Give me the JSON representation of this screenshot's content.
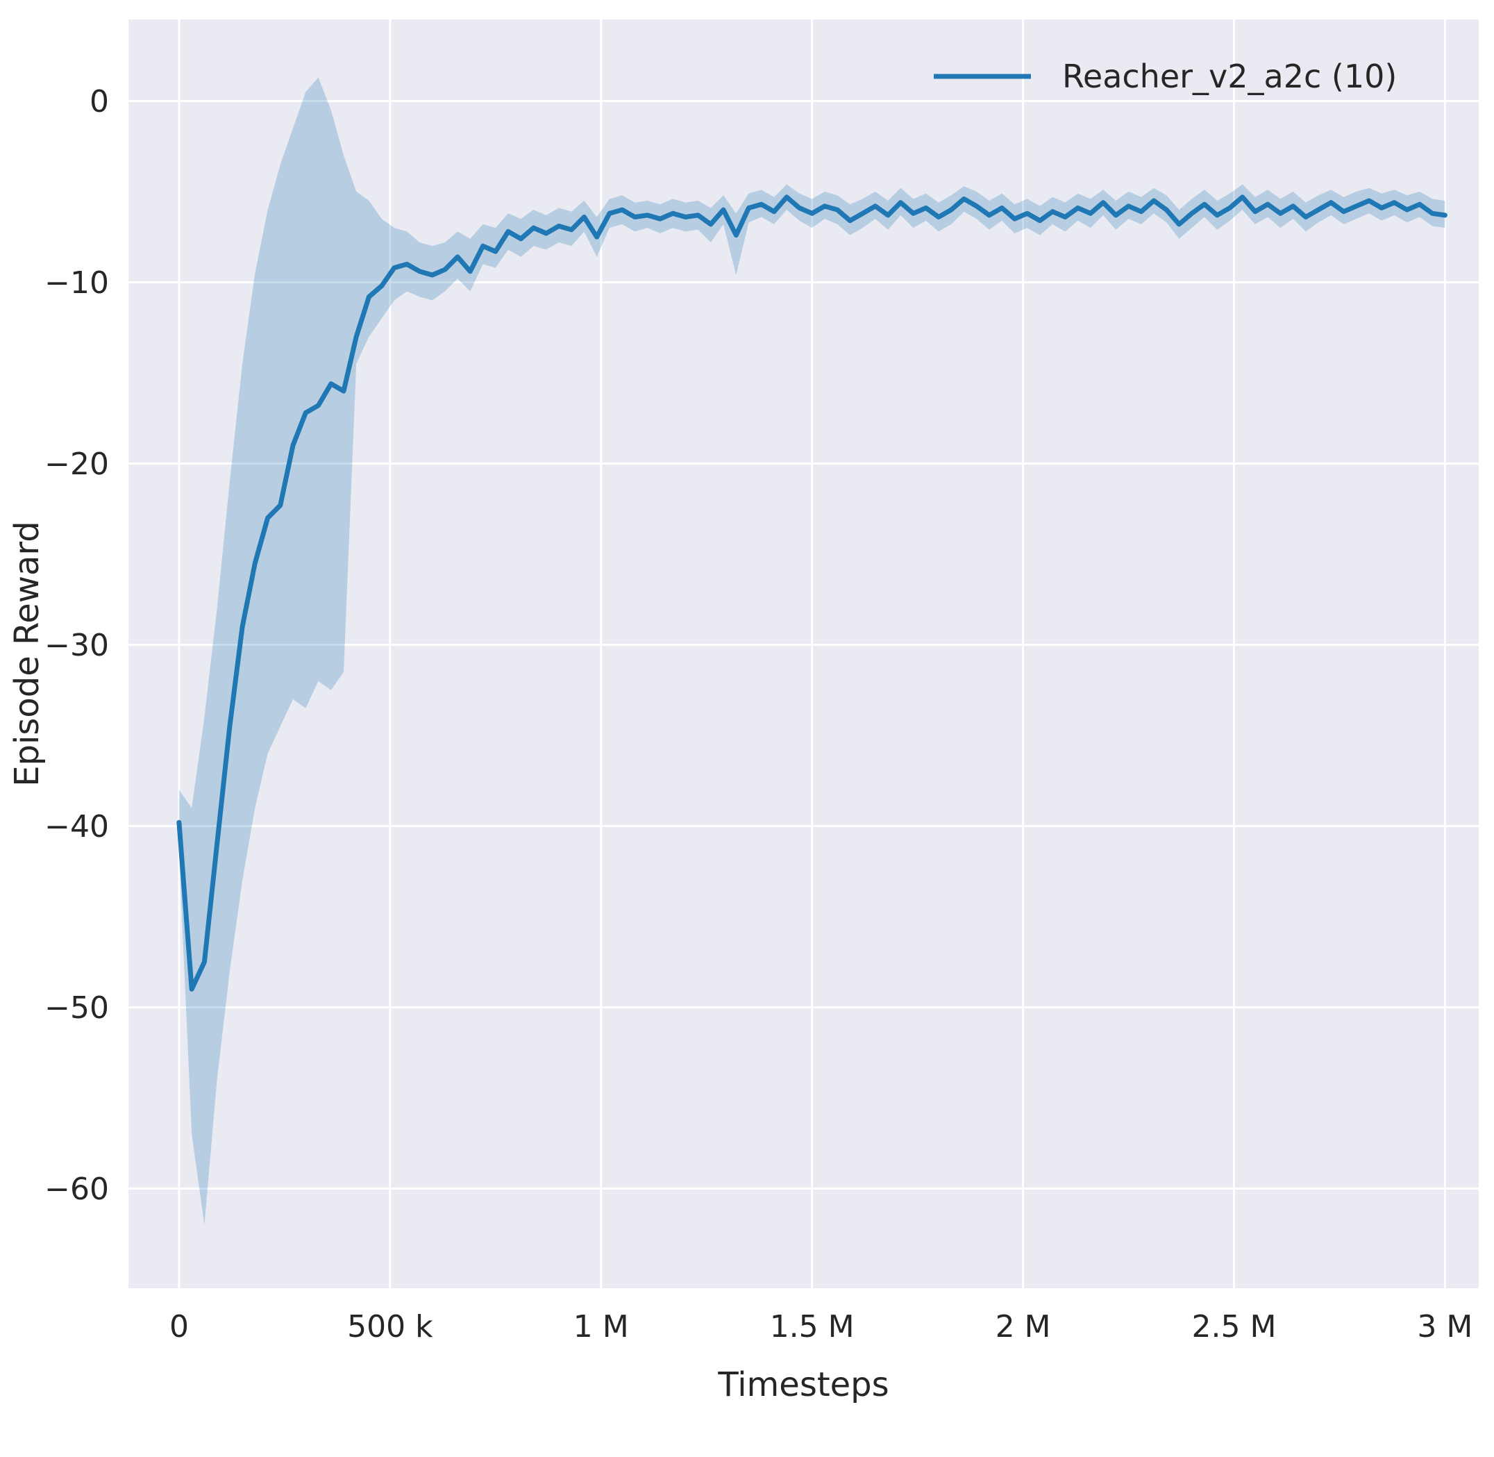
{
  "chart_data": {
    "type": "line",
    "title": "",
    "xlabel": "Timesteps",
    "ylabel": "Episode Reward",
    "legend_position": "upper right",
    "grid": true,
    "plot_bg": "#eaeaf2",
    "grid_color": "#ffffff",
    "text_color": "#262626",
    "xlim": [
      -120000,
      3080000
    ],
    "ylim": [
      -65.5,
      4.5
    ],
    "xticks": [
      {
        "value": 0,
        "label": "0"
      },
      {
        "value": 500000,
        "label": "500 k"
      },
      {
        "value": 1000000,
        "label": "1 M"
      },
      {
        "value": 1500000,
        "label": "1.5 M"
      },
      {
        "value": 2000000,
        "label": "2 M"
      },
      {
        "value": 2500000,
        "label": "2.5 M"
      },
      {
        "value": 3000000,
        "label": "3 M"
      }
    ],
    "yticks": [
      {
        "value": 0,
        "label": "0"
      },
      {
        "value": -10,
        "label": "−10"
      },
      {
        "value": -20,
        "label": "−20"
      },
      {
        "value": -30,
        "label": "−30"
      },
      {
        "value": -40,
        "label": "−40"
      },
      {
        "value": -50,
        "label": "−50"
      },
      {
        "value": -60,
        "label": "−60"
      }
    ],
    "x": [
      0,
      30000,
      60000,
      90000,
      120000,
      150000,
      180000,
      210000,
      240000,
      270000,
      300000,
      330000,
      360000,
      390000,
      420000,
      450000,
      480000,
      510000,
      540000,
      570000,
      600000,
      630000,
      660000,
      690000,
      720000,
      750000,
      780000,
      810000,
      840000,
      870000,
      900000,
      930000,
      960000,
      990000,
      1020000,
      1050000,
      1080000,
      1110000,
      1140000,
      1170000,
      1200000,
      1230000,
      1260000,
      1290000,
      1320000,
      1350000,
      1380000,
      1410000,
      1440000,
      1470000,
      1500000,
      1530000,
      1560000,
      1590000,
      1620000,
      1650000,
      1680000,
      1710000,
      1740000,
      1770000,
      1800000,
      1830000,
      1860000,
      1890000,
      1920000,
      1950000,
      1980000,
      2010000,
      2040000,
      2070000,
      2100000,
      2130000,
      2160000,
      2190000,
      2220000,
      2250000,
      2280000,
      2310000,
      2340000,
      2370000,
      2400000,
      2430000,
      2460000,
      2490000,
      2520000,
      2550000,
      2580000,
      2610000,
      2640000,
      2670000,
      2700000,
      2730000,
      2760000,
      2790000,
      2820000,
      2850000,
      2880000,
      2910000,
      2940000,
      2970000,
      3000000
    ],
    "series": [
      {
        "name": "Reacher_v2_a2c (10)",
        "color": "#1f77b4",
        "line_width": 7,
        "band_color": "#1f77b4",
        "band_opacity": 0.25,
        "mean": [
          -39.8,
          -49.0,
          -47.5,
          -41.0,
          -34.5,
          -29.0,
          -25.5,
          -23.0,
          -22.3,
          -19.0,
          -17.2,
          -16.8,
          -15.6,
          -16.0,
          -13.0,
          -10.8,
          -10.2,
          -9.2,
          -9.0,
          -9.4,
          -9.6,
          -9.3,
          -8.6,
          -9.4,
          -8.0,
          -8.3,
          -7.2,
          -7.6,
          -7.0,
          -7.3,
          -6.9,
          -7.1,
          -6.4,
          -7.5,
          -6.2,
          -6.0,
          -6.4,
          -6.3,
          -6.5,
          -6.2,
          -6.4,
          -6.3,
          -6.8,
          -6.0,
          -7.4,
          -5.9,
          -5.7,
          -6.1,
          -5.3,
          -5.9,
          -6.2,
          -5.8,
          -6.0,
          -6.6,
          -6.2,
          -5.8,
          -6.3,
          -5.6,
          -6.2,
          -5.9,
          -6.4,
          -6.0,
          -5.4,
          -5.8,
          -6.3,
          -5.9,
          -6.5,
          -6.2,
          -6.6,
          -6.1,
          -6.4,
          -5.9,
          -6.2,
          -5.6,
          -6.3,
          -5.8,
          -6.1,
          -5.5,
          -6.0,
          -6.8,
          -6.2,
          -5.7,
          -6.3,
          -5.9,
          -5.3,
          -6.1,
          -5.7,
          -6.2,
          -5.8,
          -6.4,
          -6.0,
          -5.6,
          -6.1,
          -5.8,
          -5.5,
          -5.9,
          -5.6,
          -6.0,
          -5.7,
          -6.2,
          -6.3
        ],
        "band_lower": [
          -41.5,
          -57.0,
          -62.0,
          -54.0,
          -48.0,
          -43.0,
          -39.0,
          -36.0,
          -34.5,
          -33.0,
          -33.5,
          -32.0,
          -32.5,
          -31.5,
          -14.5,
          -13.0,
          -12.0,
          -11.0,
          -10.5,
          -10.8,
          -11.0,
          -10.5,
          -9.8,
          -10.5,
          -9.0,
          -9.2,
          -8.2,
          -8.6,
          -8.0,
          -8.2,
          -7.8,
          -8.0,
          -7.2,
          -8.6,
          -7.0,
          -6.8,
          -7.2,
          -7.0,
          -7.3,
          -7.0,
          -7.2,
          -7.1,
          -7.8,
          -6.8,
          -9.6,
          -6.7,
          -6.4,
          -6.8,
          -6.0,
          -6.6,
          -7.0,
          -6.5,
          -6.8,
          -7.4,
          -7.0,
          -6.5,
          -7.1,
          -6.3,
          -7.0,
          -6.6,
          -7.2,
          -6.8,
          -6.1,
          -6.5,
          -7.1,
          -6.6,
          -7.3,
          -7.0,
          -7.4,
          -6.8,
          -7.2,
          -6.6,
          -7.0,
          -6.3,
          -7.1,
          -6.5,
          -6.8,
          -6.2,
          -6.7,
          -7.6,
          -7.0,
          -6.4,
          -7.1,
          -6.6,
          -6.0,
          -6.8,
          -6.4,
          -7.0,
          -6.5,
          -7.2,
          -6.7,
          -6.3,
          -6.8,
          -6.5,
          -6.2,
          -6.6,
          -6.3,
          -6.7,
          -6.4,
          -6.9,
          -7.0
        ],
        "band_upper": [
          -38.0,
          -39.0,
          -34.0,
          -28.0,
          -21.0,
          -14.5,
          -9.5,
          -6.0,
          -3.5,
          -1.5,
          0.5,
          1.3,
          -0.5,
          -3.0,
          -5.0,
          -5.5,
          -6.5,
          -7.0,
          -7.2,
          -7.8,
          -8.0,
          -7.8,
          -7.2,
          -7.6,
          -6.8,
          -7.0,
          -6.2,
          -6.5,
          -6.0,
          -6.3,
          -5.9,
          -6.1,
          -5.5,
          -6.4,
          -5.4,
          -5.2,
          -5.6,
          -5.5,
          -5.7,
          -5.4,
          -5.6,
          -5.5,
          -5.9,
          -5.2,
          -6.2,
          -5.1,
          -4.9,
          -5.3,
          -4.6,
          -5.1,
          -5.4,
          -5.0,
          -5.2,
          -5.7,
          -5.4,
          -5.0,
          -5.5,
          -4.8,
          -5.4,
          -5.1,
          -5.6,
          -5.2,
          -4.7,
          -5.0,
          -5.5,
          -5.1,
          -5.7,
          -5.4,
          -5.8,
          -5.3,
          -5.6,
          -5.1,
          -5.4,
          -4.9,
          -5.5,
          -5.0,
          -5.3,
          -4.8,
          -5.2,
          -6.0,
          -5.4,
          -4.9,
          -5.5,
          -5.1,
          -4.6,
          -5.3,
          -4.9,
          -5.4,
          -5.0,
          -5.6,
          -5.2,
          -4.9,
          -5.3,
          -5.0,
          -4.8,
          -5.1,
          -4.9,
          -5.2,
          -5.0,
          -5.4,
          -5.5
        ]
      }
    ]
  }
}
